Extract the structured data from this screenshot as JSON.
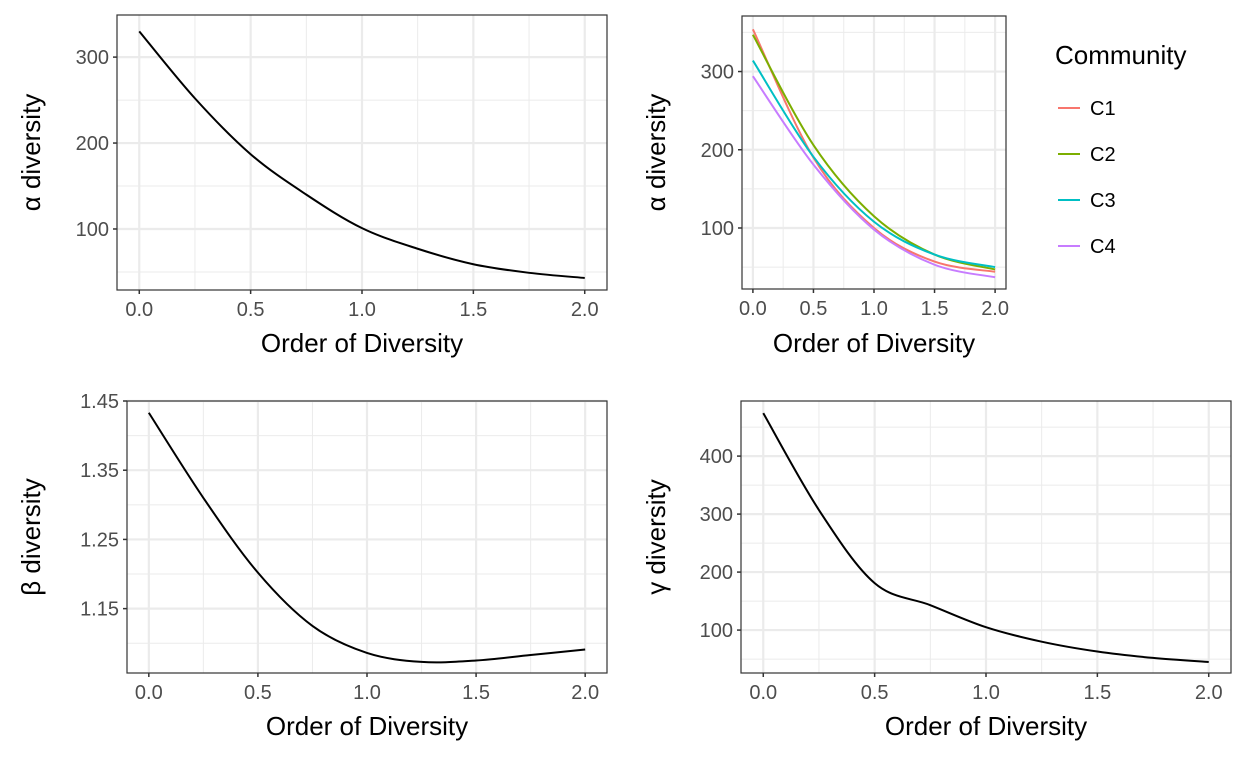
{
  "chart_data": [
    {
      "type": "line",
      "xlabel": "Order of Diversity",
      "ylabel": "α diversity",
      "xlim": [
        -0.1,
        2.1
      ],
      "ylim": [
        29,
        349
      ],
      "xticks": [
        "0.0",
        "0.5",
        "1.0",
        "1.5",
        "2.0"
      ],
      "yticks": [
        "100",
        "200",
        "300"
      ],
      "grid": true,
      "x": [
        0,
        0.25,
        0.5,
        0.75,
        1.0,
        1.25,
        1.5,
        1.75,
        2.0
      ],
      "series": [
        {
          "color": "#000000",
          "values": [
            330,
            252,
            187,
            140,
            101,
            77,
            59,
            49,
            43
          ]
        }
      ]
    },
    {
      "type": "line",
      "xlabel": "Order of Diversity",
      "ylabel": "α diversity",
      "xlim": [
        -0.09,
        2.09
      ],
      "ylim": [
        22,
        371
      ],
      "xticks": [
        "0.0",
        "0.5",
        "1.0",
        "1.5",
        "2.0"
      ],
      "yticks": [
        "100",
        "200",
        "300"
      ],
      "grid": true,
      "legend": {
        "title": "Community",
        "position": "right"
      },
      "x": [
        0,
        0.5,
        1.0,
        1.5,
        2.0
      ],
      "series": [
        {
          "name": "C1",
          "color": "#F8766D",
          "values": [
            354,
            190,
            100,
            57,
            44
          ]
        },
        {
          "name": "C2",
          "color": "#7CAE00",
          "values": [
            347,
            206,
            115,
            66,
            47
          ]
        },
        {
          "name": "C3",
          "color": "#00BFC4",
          "values": [
            314,
            191,
            108,
            66,
            50
          ]
        },
        {
          "name": "C4",
          "color": "#C77CFF",
          "values": [
            294,
            181,
            98,
            53,
            37
          ]
        }
      ]
    },
    {
      "type": "line",
      "xlabel": "Order of Diversity",
      "ylabel": "β diversity",
      "xlim": [
        -0.1,
        2.1
      ],
      "ylim": [
        1.057,
        1.45
      ],
      "xticks": [
        "0.0",
        "0.5",
        "1.0",
        "1.5",
        "2.0"
      ],
      "yticks": [
        "1.15",
        "1.25",
        "1.35",
        "1.45"
      ],
      "grid": true,
      "x": [
        0,
        0.25,
        0.5,
        0.75,
        1.0,
        1.25,
        1.5,
        1.75,
        2.0
      ],
      "series": [
        {
          "color": "#000000",
          "values": [
            1.433,
            1.31,
            1.202,
            1.125,
            1.086,
            1.073,
            1.075,
            1.083,
            1.091
          ]
        }
      ]
    },
    {
      "type": "line",
      "xlabel": "Order of Diversity",
      "ylabel": "γ diversity",
      "xlim": [
        -0.1,
        2.1
      ],
      "ylim": [
        26,
        495
      ],
      "xticks": [
        "0.0",
        "0.5",
        "1.0",
        "1.5",
        "2.0"
      ],
      "yticks": [
        "100",
        "200",
        "300",
        "400"
      ],
      "grid": true,
      "x": [
        0,
        0.25,
        0.5,
        0.75,
        1.0,
        1.25,
        1.5,
        1.75,
        2.0
      ],
      "series": [
        {
          "color": "#000000",
          "values": [
            474,
            307,
            181,
            143,
            105,
            80,
            63,
            52,
            45
          ]
        }
      ]
    }
  ]
}
